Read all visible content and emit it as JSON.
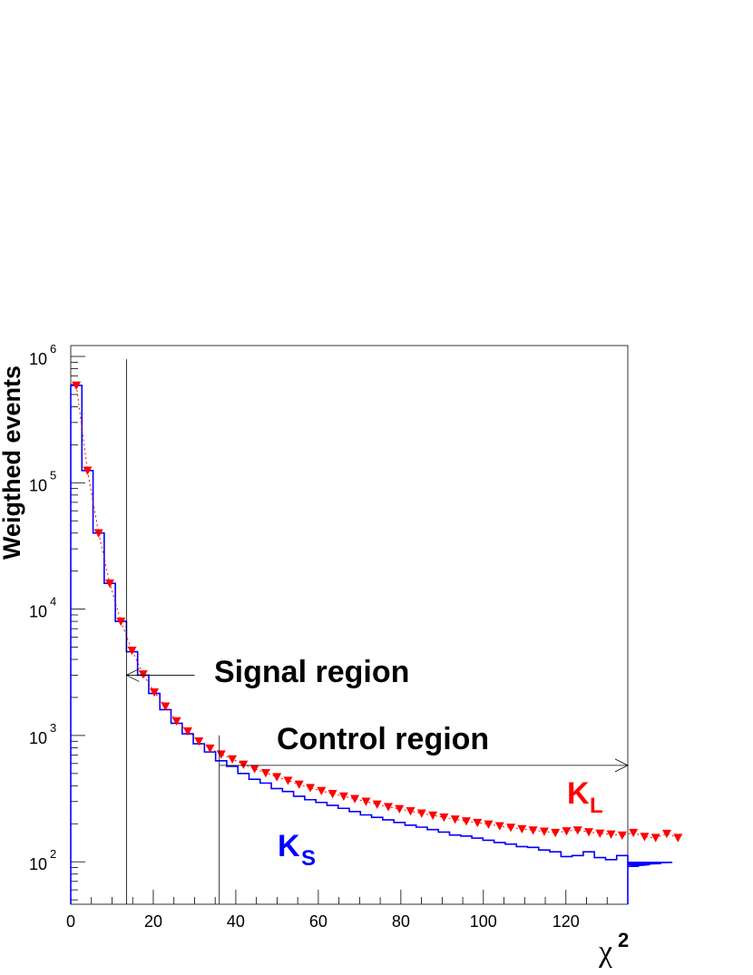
{
  "chart_data": {
    "type": "histogram",
    "xlabel_base": "χ",
    "xlabel_sup": "2",
    "ylabel": "Weigthed events",
    "xlim": [
      0,
      135
    ],
    "ylim": [
      47,
      1000000
    ],
    "y_scale": "log",
    "x_ticks": [
      0,
      20,
      40,
      60,
      80,
      100,
      120
    ],
    "y_ticks": [
      {
        "base": "10",
        "exp": "2"
      },
      {
        "base": "10",
        "exp": "3"
      },
      {
        "base": "10",
        "exp": "4"
      },
      {
        "base": "10",
        "exp": "5"
      },
      {
        "base": "10",
        "exp": "6"
      }
    ],
    "bin_width": 2.7,
    "series": [
      {
        "name_base": "K",
        "name_sub": "S",
        "style": "step",
        "color": "#0000ff",
        "values": [
          590000,
          125000,
          40000,
          16000,
          8000,
          4600,
          3000,
          2150,
          1600,
          1250,
          1030,
          860,
          740,
          630,
          570,
          500,
          450,
          420,
          380,
          360,
          330,
          310,
          295,
          280,
          265,
          250,
          235,
          225,
          215,
          205,
          195,
          188,
          180,
          172,
          163,
          160,
          154,
          148,
          142,
          138,
          132,
          130,
          124,
          120,
          110,
          112,
          120,
          108,
          104,
          112,
          99,
          92,
          95,
          97,
          99
        ]
      },
      {
        "name_base": "K",
        "name_sub": "L",
        "style": "marker-triangle-down",
        "color": "#ff0000",
        "values": [
          590000,
          125000,
          40000,
          16000,
          8000,
          4700,
          3050,
          2200,
          1700,
          1300,
          1080,
          900,
          790,
          710,
          650,
          590,
          545,
          505,
          470,
          440,
          410,
          385,
          365,
          345,
          330,
          315,
          300,
          285,
          272,
          262,
          252,
          242,
          233,
          225,
          217,
          210,
          204,
          198,
          192,
          187,
          182,
          178,
          174,
          170,
          175,
          178,
          172,
          168,
          165,
          162,
          170,
          158,
          155,
          167,
          155
        ]
      }
    ],
    "annotations": [
      {
        "text": "Signal region",
        "arrow_from": 30,
        "arrow_to": 13.5,
        "arrow_y": 3000,
        "cut_x": 13.5,
        "cut_top": 950000
      },
      {
        "text": "Control region",
        "arrow_from": 36,
        "arrow_to": 135,
        "arrow_y": 580,
        "cut_x": 36,
        "cut_top": 1000
      }
    ]
  }
}
